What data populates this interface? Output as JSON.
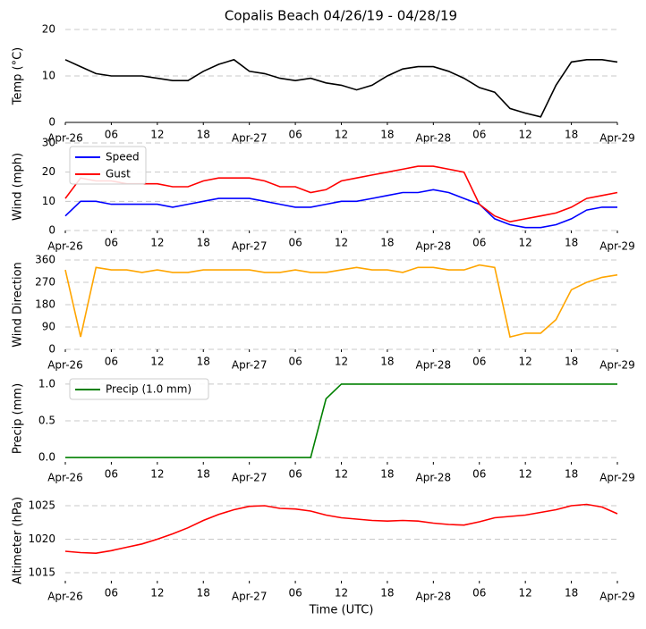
{
  "title": "Copalis Beach 04/26/19 - 04/28/19",
  "chart_data": [
    {
      "type": "line",
      "ylabel": "Temp (°C)",
      "color": "#000000",
      "x": [
        0,
        2,
        4,
        6,
        8,
        10,
        12,
        14,
        16,
        18,
        20,
        22,
        24,
        26,
        28,
        30,
        32,
        34,
        36,
        38,
        40,
        42,
        44,
        46,
        48,
        50,
        52,
        54,
        56,
        58,
        60,
        62,
        64,
        66,
        68,
        70,
        72
      ],
      "values": [
        13.5,
        12,
        10.5,
        10,
        10,
        10,
        9.5,
        9,
        9,
        11,
        12.5,
        13.5,
        11,
        10.5,
        9.5,
        9,
        9.5,
        8.5,
        8,
        7,
        8,
        10,
        11.5,
        12,
        12,
        11,
        9.5,
        7.5,
        6.5,
        3,
        2,
        1.2,
        8,
        13,
        13.5,
        13.5,
        13
      ],
      "xlim": [
        0,
        72
      ],
      "ylim": [
        0,
        20
      ],
      "yticks": [
        0,
        10,
        20
      ],
      "xticks": [
        {
          "value": 0,
          "label": "Apr-26"
        },
        {
          "value": 6,
          "label": "06"
        },
        {
          "value": 12,
          "label": "12"
        },
        {
          "value": 18,
          "label": "18"
        },
        {
          "value": 24,
          "label": "Apr-27"
        },
        {
          "value": 30,
          "label": "06"
        },
        {
          "value": 36,
          "label": "12"
        },
        {
          "value": 42,
          "label": "18"
        },
        {
          "value": 48,
          "label": "Apr-28"
        },
        {
          "value": 54,
          "label": "06"
        },
        {
          "value": 60,
          "label": "12"
        },
        {
          "value": 66,
          "label": "18"
        },
        {
          "value": 72,
          "label": "Apr-29"
        }
      ],
      "grid": true
    },
    {
      "type": "line",
      "ylabel": "Wind (mph)",
      "legend": "upper left",
      "x": [
        0,
        2,
        4,
        6,
        8,
        10,
        12,
        14,
        16,
        18,
        20,
        22,
        24,
        26,
        28,
        30,
        32,
        34,
        36,
        38,
        40,
        42,
        44,
        46,
        48,
        50,
        52,
        54,
        56,
        58,
        60,
        62,
        64,
        66,
        68,
        70,
        72
      ],
      "series": [
        {
          "name": "Speed",
          "color": "#0000ff",
          "values": [
            5,
            10,
            10,
            9,
            9,
            9,
            9,
            8,
            9,
            10,
            11,
            11,
            11,
            10,
            9,
            8,
            8,
            9,
            10,
            10,
            11,
            12,
            13,
            13,
            14,
            13,
            11,
            9,
            4,
            2,
            1,
            1,
            2,
            4,
            7,
            8,
            8
          ]
        },
        {
          "name": "Gust",
          "color": "#ff0000",
          "values": [
            11,
            18,
            17,
            17,
            16,
            16,
            16,
            15,
            15,
            17,
            18,
            18,
            18,
            17,
            15,
            15,
            13,
            14,
            17,
            18,
            19,
            20,
            21,
            22,
            22,
            21,
            20,
            9,
            5,
            3,
            4,
            5,
            6,
            8,
            11,
            12,
            13
          ]
        }
      ],
      "xlim": [
        0,
        72
      ],
      "ylim": [
        0,
        30
      ],
      "yticks": [
        0,
        10,
        20,
        30
      ],
      "xticks": [
        {
          "value": 0,
          "label": "Apr-26"
        },
        {
          "value": 6,
          "label": "06"
        },
        {
          "value": 12,
          "label": "12"
        },
        {
          "value": 18,
          "label": "18"
        },
        {
          "value": 24,
          "label": "Apr-27"
        },
        {
          "value": 30,
          "label": "06"
        },
        {
          "value": 36,
          "label": "12"
        },
        {
          "value": 42,
          "label": "18"
        },
        {
          "value": 48,
          "label": "Apr-28"
        },
        {
          "value": 54,
          "label": "06"
        },
        {
          "value": 60,
          "label": "12"
        },
        {
          "value": 66,
          "label": "18"
        },
        {
          "value": 72,
          "label": "Apr-29"
        }
      ],
      "grid": true
    },
    {
      "type": "line",
      "ylabel": "Wind Direction",
      "color": "#ffa500",
      "x": [
        0,
        2,
        4,
        6,
        8,
        10,
        12,
        14,
        16,
        18,
        20,
        22,
        24,
        26,
        28,
        30,
        32,
        34,
        36,
        38,
        40,
        42,
        44,
        46,
        48,
        50,
        52,
        54,
        56,
        58,
        60,
        62,
        64,
        66,
        68,
        70,
        72
      ],
      "values": [
        320,
        50,
        330,
        320,
        320,
        310,
        320,
        310,
        310,
        320,
        320,
        320,
        320,
        310,
        310,
        320,
        310,
        310,
        320,
        330,
        320,
        320,
        310,
        330,
        330,
        320,
        320,
        340,
        330,
        50,
        65,
        65,
        120,
        240,
        270,
        290,
        300
      ],
      "xlim": [
        0,
        72
      ],
      "ylim": [
        0,
        360
      ],
      "yticks": [
        0,
        90,
        180,
        270,
        360
      ],
      "xticks": [
        {
          "value": 0,
          "label": "Apr-26"
        },
        {
          "value": 6,
          "label": "06"
        },
        {
          "value": 12,
          "label": "12"
        },
        {
          "value": 18,
          "label": "18"
        },
        {
          "value": 24,
          "label": "Apr-27"
        },
        {
          "value": 30,
          "label": "06"
        },
        {
          "value": 36,
          "label": "12"
        },
        {
          "value": 42,
          "label": "18"
        },
        {
          "value": 48,
          "label": "Apr-28"
        },
        {
          "value": 54,
          "label": "06"
        },
        {
          "value": 60,
          "label": "12"
        },
        {
          "value": 66,
          "label": "18"
        },
        {
          "value": 72,
          "label": "Apr-29"
        }
      ],
      "grid": true
    },
    {
      "type": "line",
      "ylabel": "Precip (mm)",
      "legend": "upper left",
      "x": [
        0,
        2,
        4,
        6,
        8,
        10,
        12,
        14,
        16,
        18,
        20,
        22,
        24,
        26,
        28,
        30,
        32,
        34,
        36,
        38,
        40,
        42,
        44,
        46,
        48,
        50,
        52,
        54,
        56,
        58,
        60,
        62,
        64,
        66,
        68,
        70,
        72
      ],
      "series": [
        {
          "name": "Precip (1.0 mm)",
          "color": "#008000",
          "values": [
            0,
            0,
            0,
            0,
            0,
            0,
            0,
            0,
            0,
            0,
            0,
            0,
            0,
            0,
            0,
            0,
            0,
            0.8,
            1,
            1,
            1,
            1,
            1,
            1,
            1,
            1,
            1,
            1,
            1,
            1,
            1,
            1,
            1,
            1,
            1,
            1,
            1
          ]
        }
      ],
      "xlim": [
        0,
        72
      ],
      "ylim": [
        -0.06,
        1.12
      ],
      "yticks": [
        {
          "value": 0,
          "label": "0.0"
        },
        0.5,
        {
          "value": 1,
          "label": "1.0"
        }
      ],
      "xticks": [
        {
          "value": 0,
          "label": "Apr-26"
        },
        {
          "value": 6,
          "label": "06"
        },
        {
          "value": 12,
          "label": "12"
        },
        {
          "value": 18,
          "label": "18"
        },
        {
          "value": 24,
          "label": "Apr-27"
        },
        {
          "value": 30,
          "label": "06"
        },
        {
          "value": 36,
          "label": "12"
        },
        {
          "value": 42,
          "label": "18"
        },
        {
          "value": 48,
          "label": "Apr-28"
        },
        {
          "value": 54,
          "label": "06"
        },
        {
          "value": 60,
          "label": "12"
        },
        {
          "value": 66,
          "label": "18"
        },
        {
          "value": 72,
          "label": "Apr-29"
        }
      ],
      "grid": true
    },
    {
      "type": "line",
      "ylabel": "Altimeter (hPa)",
      "xlabel": "Time (UTC)",
      "color": "#ff0000",
      "x": [
        0,
        2,
        4,
        6,
        8,
        10,
        12,
        14,
        16,
        18,
        20,
        22,
        24,
        26,
        28,
        30,
        32,
        34,
        36,
        38,
        40,
        42,
        44,
        46,
        48,
        50,
        52,
        54,
        56,
        58,
        60,
        62,
        64,
        66,
        68,
        70,
        72
      ],
      "values": [
        1018.2,
        1018,
        1017.9,
        1018.3,
        1018.8,
        1019.3,
        1020,
        1020.8,
        1021.7,
        1022.8,
        1023.7,
        1024.4,
        1024.9,
        1025,
        1024.6,
        1024.5,
        1024.2,
        1023.6,
        1023.2,
        1023,
        1022.8,
        1022.7,
        1022.8,
        1022.7,
        1022.4,
        1022.2,
        1022.1,
        1022.6,
        1023.2,
        1023.4,
        1023.6,
        1024,
        1024.4,
        1025,
        1025.2,
        1024.8,
        1023.8
      ],
      "xlim": [
        0,
        72
      ],
      "ylim": [
        1013.8,
        1025.8
      ],
      "yticks": [
        1015,
        1020,
        1025
      ],
      "xticks": [
        {
          "value": 0,
          "label": "Apr-26"
        },
        {
          "value": 6,
          "label": "06"
        },
        {
          "value": 12,
          "label": "12"
        },
        {
          "value": 18,
          "label": "18"
        },
        {
          "value": 24,
          "label": "Apr-27"
        },
        {
          "value": 30,
          "label": "06"
        },
        {
          "value": 36,
          "label": "12"
        },
        {
          "value": 42,
          "label": "18"
        },
        {
          "value": 48,
          "label": "Apr-28"
        },
        {
          "value": 54,
          "label": "06"
        },
        {
          "value": 60,
          "label": "12"
        },
        {
          "value": 66,
          "label": "18"
        },
        {
          "value": 72,
          "label": "Apr-29"
        }
      ],
      "grid": true
    }
  ]
}
